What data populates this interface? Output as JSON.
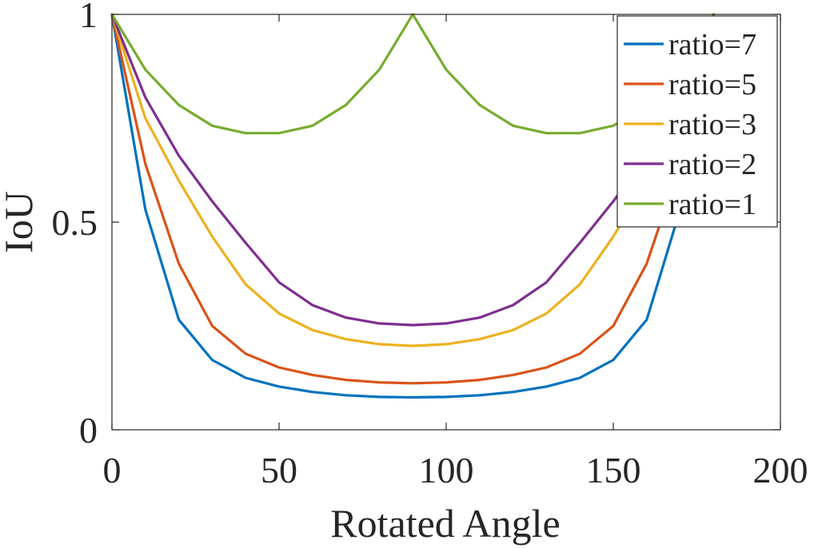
{
  "chart_data": {
    "type": "line",
    "title": "",
    "xlabel": "Rotated Angle",
    "ylabel": "IoU",
    "xlim": [
      0,
      200
    ],
    "ylim": [
      0,
      1
    ],
    "xticks": [
      0,
      50,
      100,
      150,
      200
    ],
    "xtick_labels": [
      "0",
      "50",
      "100",
      "150",
      "200"
    ],
    "yticks": [
      0,
      0.5,
      1
    ],
    "ytick_labels": [
      "0",
      "0.5",
      "1"
    ],
    "grid": false,
    "legend_position": "top-right",
    "x": [
      0,
      10,
      20,
      30,
      40,
      50,
      60,
      70,
      80,
      90,
      100,
      110,
      120,
      130,
      140,
      150,
      160,
      170,
      180
    ],
    "series": [
      {
        "name": "ratio=7",
        "color": "#0072BD",
        "values": [
          1.0,
          0.53,
          0.265,
          0.168,
          0.125,
          0.104,
          0.091,
          0.083,
          0.079,
          0.078,
          0.079,
          0.083,
          0.091,
          0.104,
          0.125,
          0.168,
          0.265,
          0.53,
          1.0
        ]
      },
      {
        "name": "ratio=5",
        "color": "#D95319",
        "values": [
          1.0,
          0.64,
          0.4,
          0.25,
          0.183,
          0.15,
          0.132,
          0.12,
          0.114,
          0.112,
          0.114,
          0.12,
          0.132,
          0.15,
          0.183,
          0.25,
          0.4,
          0.64,
          1.0
        ]
      },
      {
        "name": "ratio=3",
        "color": "#EDB120",
        "values": [
          1.0,
          0.75,
          0.6,
          0.465,
          0.35,
          0.28,
          0.24,
          0.218,
          0.206,
          0.202,
          0.206,
          0.218,
          0.24,
          0.28,
          0.35,
          0.465,
          0.6,
          0.75,
          1.0
        ]
      },
      {
        "name": "ratio=2",
        "color": "#7E2F8E",
        "values": [
          1.0,
          0.8,
          0.66,
          0.55,
          0.45,
          0.355,
          0.3,
          0.27,
          0.256,
          0.252,
          0.256,
          0.27,
          0.3,
          0.355,
          0.45,
          0.55,
          0.66,
          0.8,
          1.0
        ]
      },
      {
        "name": "ratio=1",
        "color": "#77AC30",
        "values": [
          1.0,
          0.867,
          0.782,
          0.732,
          0.714,
          0.714,
          0.732,
          0.782,
          0.867,
          1.0,
          0.867,
          0.782,
          0.732,
          0.714,
          0.714,
          0.732,
          0.782,
          0.867,
          1.0
        ]
      }
    ]
  }
}
